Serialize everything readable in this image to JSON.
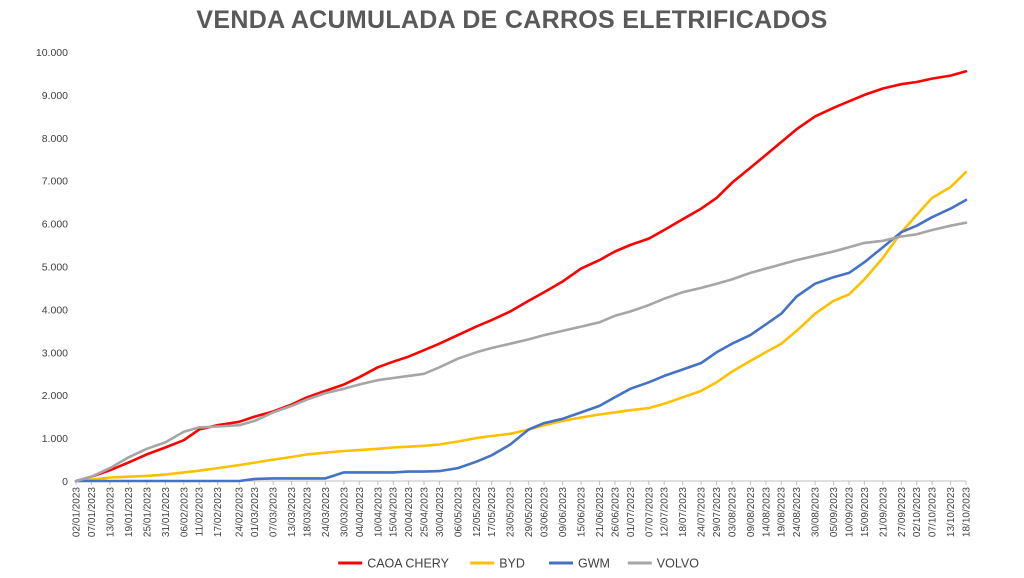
{
  "chart_data": {
    "type": "line",
    "title": "VENDA ACUMULADA DE CARROS ELETRIFICADOS",
    "xlabel": "",
    "ylabel": "",
    "ylim": [
      0,
      10000
    ],
    "y_ticks": [
      "0",
      "1.000",
      "2.000",
      "3.000",
      "4.000",
      "5.000",
      "6.000",
      "7.000",
      "8.000",
      "9.000",
      "10.000"
    ],
    "x_tick_labels": [
      "02/01/2023",
      "07/01/2023",
      "13/01/2023",
      "19/01/2023",
      "25/01/2023",
      "31/01/2023",
      "06/02/2023",
      "11/02/2023",
      "17/02/2023",
      "24/02/2023",
      "01/03/2023",
      "07/03/2023",
      "13/03/2023",
      "18/03/2023",
      "24/03/2023",
      "30/03/2023",
      "04/04/2023",
      "10/04/2023",
      "15/04/2023",
      "20/04/2023",
      "25/04/2023",
      "30/04/2023",
      "06/05/2023",
      "12/05/2023",
      "17/05/2023",
      "23/05/2023",
      "29/05/2023",
      "03/06/2023",
      "09/06/2023",
      "15/06/2023",
      "21/06/2023",
      "26/06/2023",
      "01/07/2023",
      "07/07/2023",
      "12/07/2023",
      "18/07/2023",
      "24/07/2023",
      "29/07/2023",
      "03/08/2023",
      "09/08/2023",
      "14/08/2023",
      "19/08/2023",
      "24/08/2023",
      "30/08/2023",
      "05/09/2023",
      "10/09/2023",
      "15/09/2023",
      "21/09/2023",
      "27/09/2023",
      "02/10/2023",
      "07/10/2023",
      "13/10/2023",
      "18/10/2023"
    ],
    "x_day_of_year": [
      2,
      7,
      13,
      19,
      25,
      31,
      37,
      42,
      48,
      55,
      60,
      66,
      72,
      77,
      83,
      89,
      94,
      100,
      105,
      110,
      115,
      120,
      126,
      132,
      137,
      143,
      149,
      154,
      160,
      166,
      172,
      177,
      182,
      188,
      193,
      199,
      205,
      210,
      215,
      221,
      226,
      231,
      236,
      242,
      248,
      253,
      258,
      264,
      270,
      275,
      280,
      286,
      291
    ],
    "legend_position": "bottom",
    "grid": false,
    "series": [
      {
        "name": "CAOA CHERY",
        "color": "#ff0000",
        "x": [
          2,
          7,
          13,
          19,
          25,
          31,
          37,
          42,
          48,
          55,
          60,
          66,
          72,
          77,
          83,
          89,
          94,
          100,
          105,
          110,
          115,
          120,
          126,
          132,
          137,
          143,
          149,
          154,
          160,
          166,
          172,
          177,
          182,
          188,
          193,
          199,
          205,
          210,
          215,
          221,
          226,
          231,
          236,
          242,
          248,
          253,
          258,
          264,
          270,
          275,
          280,
          286,
          291
        ],
        "values": [
          0,
          100,
          250,
          430,
          620,
          780,
          950,
          1200,
          1300,
          1380,
          1500,
          1620,
          1780,
          1950,
          2100,
          2250,
          2420,
          2650,
          2780,
          2900,
          3050,
          3200,
          3400,
          3600,
          3750,
          3950,
          4200,
          4400,
          4650,
          4950,
          5150,
          5350,
          5500,
          5650,
          5850,
          6100,
          6350,
          6600,
          6950,
          7300,
          7600,
          7900,
          8200,
          8500,
          8700,
          8850,
          9000,
          9150,
          9250,
          9300,
          9380,
          9450,
          9550
        ]
      },
      {
        "name": "BYD",
        "color": "#ffc000",
        "x": [
          2,
          7,
          13,
          19,
          25,
          31,
          37,
          42,
          48,
          55,
          60,
          66,
          72,
          77,
          83,
          89,
          94,
          100,
          105,
          110,
          115,
          120,
          126,
          132,
          137,
          143,
          149,
          154,
          160,
          166,
          172,
          177,
          182,
          188,
          193,
          199,
          205,
          210,
          215,
          221,
          226,
          231,
          236,
          242,
          248,
          253,
          258,
          264,
          270,
          275,
          280,
          286,
          291
        ],
        "values": [
          0,
          30,
          80,
          100,
          120,
          150,
          200,
          240,
          300,
          370,
          430,
          500,
          560,
          620,
          660,
          700,
          720,
          750,
          780,
          800,
          820,
          850,
          920,
          1000,
          1050,
          1100,
          1200,
          1300,
          1400,
          1480,
          1550,
          1600,
          1650,
          1700,
          1800,
          1950,
          2100,
          2300,
          2550,
          2800,
          3000,
          3200,
          3500,
          3900,
          4200,
          4350,
          4700,
          5200,
          5800,
          6200,
          6600,
          6850,
          7200
        ]
      },
      {
        "name": "GWM",
        "color": "#4472c4",
        "x": [
          2,
          7,
          13,
          19,
          25,
          31,
          37,
          42,
          48,
          55,
          60,
          66,
          72,
          77,
          83,
          89,
          94,
          100,
          105,
          110,
          115,
          120,
          126,
          132,
          137,
          143,
          149,
          154,
          160,
          166,
          172,
          177,
          182,
          188,
          193,
          199,
          205,
          210,
          215,
          221,
          226,
          231,
          236,
          242,
          248,
          253,
          258,
          264,
          270,
          275,
          280,
          286,
          291
        ],
        "values": [
          0,
          0,
          0,
          0,
          0,
          0,
          0,
          0,
          0,
          0,
          50,
          60,
          60,
          60,
          60,
          200,
          200,
          200,
          200,
          220,
          220,
          230,
          300,
          450,
          600,
          850,
          1200,
          1350,
          1450,
          1600,
          1750,
          1950,
          2150,
          2300,
          2450,
          2600,
          2750,
          3000,
          3200,
          3400,
          3650,
          3900,
          4300,
          4600,
          4750,
          4850,
          5100,
          5450,
          5800,
          5950,
          6150,
          6350,
          6550
        ]
      },
      {
        "name": "VOLVO",
        "color": "#a6a6a6",
        "x": [
          2,
          7,
          13,
          19,
          25,
          31,
          37,
          42,
          48,
          55,
          60,
          66,
          72,
          77,
          83,
          89,
          94,
          100,
          105,
          110,
          115,
          120,
          126,
          132,
          137,
          143,
          149,
          154,
          160,
          166,
          172,
          177,
          182,
          188,
          193,
          199,
          205,
          210,
          215,
          221,
          226,
          231,
          236,
          242,
          248,
          253,
          258,
          264,
          270,
          275,
          280,
          286,
          291
        ],
        "values": [
          0,
          100,
          300,
          550,
          750,
          900,
          1150,
          1250,
          1270,
          1300,
          1400,
          1600,
          1750,
          1900,
          2050,
          2150,
          2250,
          2350,
          2400,
          2450,
          2500,
          2650,
          2850,
          3000,
          3100,
          3200,
          3300,
          3400,
          3500,
          3600,
          3700,
          3850,
          3950,
          4100,
          4250,
          4400,
          4500,
          4600,
          4700,
          4850,
          4950,
          5050,
          5150,
          5250,
          5350,
          5450,
          5550,
          5600,
          5700,
          5750,
          5850,
          5950,
          6020
        ]
      }
    ]
  }
}
